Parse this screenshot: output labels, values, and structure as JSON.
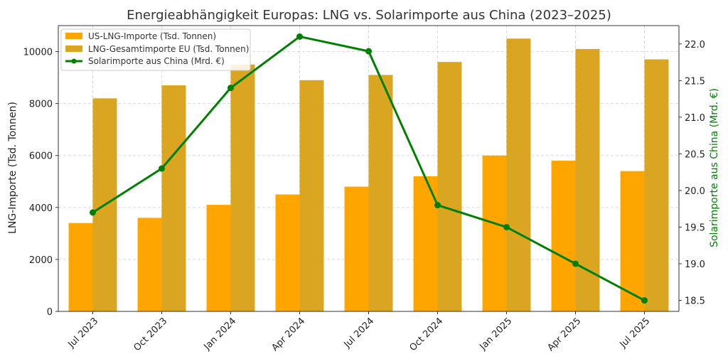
{
  "chart_data": {
    "type": "bar",
    "title": "Energieabhängigkeit Europas: LNG vs. Solarimporte aus China (2023–2025)",
    "categories": [
      "Jul 2023",
      "Oct 2023",
      "Jan 2024",
      "Apr 2024",
      "Jul 2024",
      "Oct 2024",
      "Jan 2025",
      "Apr 2025",
      "Jul 2025"
    ],
    "ylabel": "LNG-Importe (Tsd. Tonnen)",
    "ylabel_right": "Solarimporte aus China (Mrd. €)",
    "ylim": [
      0,
      11000
    ],
    "ylim_right": [
      18.35,
      22.25
    ],
    "yticks": [
      0,
      2000,
      4000,
      6000,
      8000,
      10000
    ],
    "yticks_right": [
      "18.5",
      "19.0",
      "19.5",
      "20.0",
      "20.5",
      "21.0",
      "21.5",
      "22.0"
    ],
    "grid": true,
    "legend_position": "top-left",
    "series": [
      {
        "name": "US-LNG-Importe (Tsd. Tonnen)",
        "kind": "bar",
        "axis": "left",
        "color": "#FFA500",
        "values": [
          3400,
          3600,
          4100,
          4500,
          4800,
          5200,
          6000,
          5800,
          5400
        ]
      },
      {
        "name": "LNG-Gesamtimporte EU (Tsd. Tonnen)",
        "kind": "bar",
        "axis": "left",
        "color": "#DAA520",
        "values": [
          8200,
          8700,
          9500,
          8900,
          9100,
          9600,
          10500,
          10100,
          9700
        ]
      },
      {
        "name": "Solarimporte aus China (Mrd. €)",
        "kind": "line",
        "axis": "right",
        "color": "#008000",
        "values": [
          19.7,
          20.3,
          21.4,
          22.1,
          21.9,
          19.8,
          19.5,
          19.0,
          18.5
        ]
      }
    ]
  }
}
